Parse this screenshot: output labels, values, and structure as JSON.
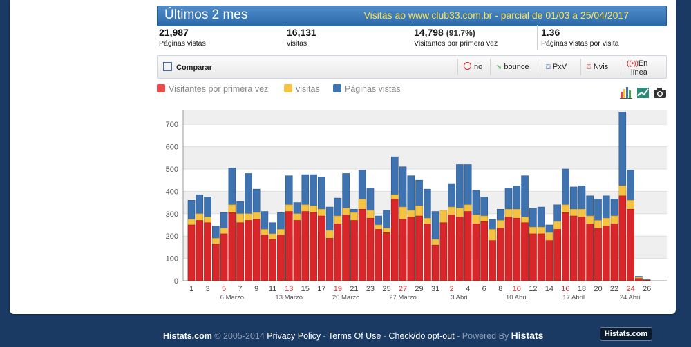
{
  "header": {
    "title": "Últimos 2 mes",
    "subtitle": "Visitas ao www.club33.com.br - parcial de 01/03 a 25/04/2017"
  },
  "stats": [
    {
      "value": "21,987",
      "pct": "",
      "label": "Páginas vistas"
    },
    {
      "value": "16,131",
      "pct": "",
      "label": "visitas"
    },
    {
      "value": "14,798",
      "pct": "(91.7%)",
      "label": "Visitantes por primera vez"
    },
    {
      "value": "1.36",
      "pct": "",
      "label": "Páginas vistas por visita"
    }
  ],
  "toolbar": {
    "compare_label": "Comparar",
    "no_label": "no",
    "bounce_label": "bounce",
    "pxv_label": "PxV",
    "nvis_label": "Nvis",
    "online_label_1": "En",
    "online_label_2": "línea"
  },
  "legend": {
    "first_time": "Visitantes por primera vez",
    "visits": "visitas",
    "pageviews": "Páginas vistas"
  },
  "colors": {
    "pageviews": "#3e73b0",
    "visits": "#f5c242",
    "first_time": "#d8262a",
    "header": "#2c6aab",
    "background": "#1b3a63"
  },
  "icons": [
    "bar-chart-icon",
    "line-chart-icon",
    "camera-icon"
  ],
  "chart_data": {
    "type": "bar",
    "stacked_overlay": true,
    "ylim": [
      0,
      750
    ],
    "yticks": [
      0,
      100,
      200,
      300,
      400,
      500,
      600,
      700
    ],
    "x": [
      1,
      2,
      3,
      4,
      5,
      6,
      7,
      8,
      9,
      10,
      11,
      12,
      13,
      14,
      15,
      16,
      17,
      18,
      19,
      20,
      21,
      22,
      23,
      24,
      25,
      26,
      27,
      28,
      29,
      30,
      31,
      1,
      2,
      3,
      4,
      5,
      6,
      7,
      8,
      9,
      10,
      11,
      12,
      13,
      14,
      15,
      16,
      17,
      18,
      19,
      20,
      21,
      22,
      23,
      24,
      25,
      26
    ],
    "xtick_labels": [
      "1",
      "3",
      "5",
      "7",
      "9",
      "11",
      "13",
      "15",
      "17",
      "19",
      "21",
      "23",
      "25",
      "27",
      "29",
      "31",
      "2",
      "4",
      "6",
      "8",
      "10",
      "12",
      "14",
      "16",
      "18",
      "20",
      "22",
      "24",
      "26"
    ],
    "red_ticks": [
      "5",
      "13",
      "19",
      "27",
      "2",
      "10",
      "16",
      "24"
    ],
    "week_labels": [
      "6 Marzo",
      "13 Marzo",
      "20 Marzo",
      "27 Marzo",
      "3 Abril",
      "10 Abril",
      "17 Abril",
      "24 Abril"
    ],
    "grid": true,
    "series": [
      {
        "name": "Páginas vistas",
        "values": [
          360,
          385,
          375,
          245,
          305,
          505,
          355,
          480,
          410,
          310,
          260,
          305,
          470,
          350,
          475,
          475,
          465,
          330,
          370,
          480,
          320,
          495,
          415,
          290,
          315,
          555,
          510,
          470,
          450,
          410,
          310,
          300,
          435,
          520,
          520,
          405,
          375,
          275,
          320,
          415,
          425,
          470,
          325,
          330,
          250,
          340,
          500,
          420,
          425,
          380,
          365,
          380,
          365,
          755,
          495,
          20,
          5
        ]
      },
      {
        "name": "visitas",
        "values": [
          275,
          300,
          285,
          190,
          235,
          340,
          300,
          300,
          305,
          230,
          210,
          230,
          340,
          300,
          340,
          335,
          320,
          225,
          290,
          325,
          305,
          365,
          315,
          250,
          235,
          385,
          330,
          315,
          335,
          280,
          185,
          315,
          330,
          325,
          340,
          295,
          290,
          230,
          270,
          320,
          320,
          285,
          240,
          240,
          215,
          265,
          340,
          320,
          320,
          290,
          270,
          280,
          290,
          425,
          360,
          15,
          3
        ]
      },
      {
        "name": "Visitantes por primera vez",
        "values": [
          250,
          270,
          260,
          165,
          210,
          305,
          260,
          270,
          275,
          205,
          185,
          205,
          310,
          270,
          310,
          305,
          290,
          190,
          255,
          295,
          270,
          320,
          280,
          230,
          215,
          365,
          275,
          285,
          290,
          255,
          160,
          260,
          295,
          285,
          310,
          255,
          265,
          180,
          235,
          285,
          280,
          260,
          210,
          210,
          180,
          230,
          305,
          290,
          285,
          255,
          235,
          245,
          255,
          380,
          320,
          10,
          2
        ]
      }
    ]
  },
  "footer": {
    "site": "Histats.com",
    "copyright": " © 2005-2014 ",
    "privacy": "Privacy Policy",
    "sep1": " - ",
    "terms": "Terms Of Use",
    "sep2": " - ",
    "optout": "Check/do opt-out",
    "powered": " - Powered By ",
    "brand": "Histats",
    "logo_text": "Histats.com"
  }
}
